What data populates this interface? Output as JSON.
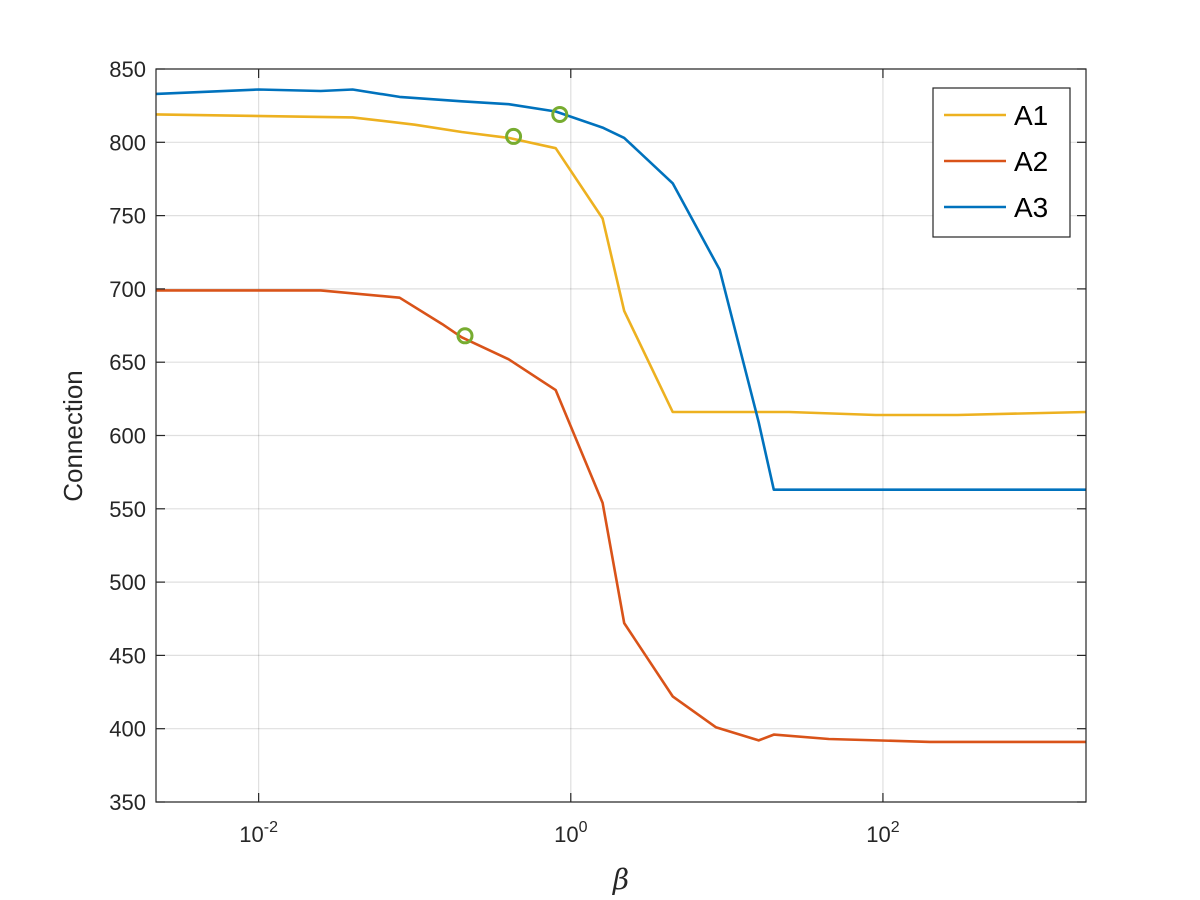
{
  "chart_data": {
    "type": "line",
    "title": "",
    "xlabel": "β",
    "ylabel": "Connection",
    "xscale": "log",
    "xlim": [
      0.0022,
      2000
    ],
    "ylim": [
      350,
      850
    ],
    "x_ticks": [
      {
        "value": 0.01,
        "base": "10",
        "exp": "-2"
      },
      {
        "value": 1,
        "base": "10",
        "exp": "0"
      },
      {
        "value": 100,
        "base": "10",
        "exp": "2"
      }
    ],
    "y_ticks": [
      {
        "value": 350,
        "label": "350"
      },
      {
        "value": 400,
        "label": "400"
      },
      {
        "value": 450,
        "label": "450"
      },
      {
        "value": 500,
        "label": "500"
      },
      {
        "value": 550,
        "label": "550"
      },
      {
        "value": 600,
        "label": "600"
      },
      {
        "value": 650,
        "label": "650"
      },
      {
        "value": 700,
        "label": "700"
      },
      {
        "value": 750,
        "label": "750"
      },
      {
        "value": 800,
        "label": "800"
      },
      {
        "value": 850,
        "label": "850"
      }
    ],
    "grid": true,
    "legend_position": "top-right",
    "series": [
      {
        "name": "A1",
        "color": "#EDB120",
        "x": [
          0.0022,
          0.04,
          0.1,
          0.2,
          0.4,
          0.8,
          1.6,
          2.2,
          4.5,
          25,
          90,
          300,
          2000
        ],
        "y": [
          819,
          817,
          812,
          807,
          803,
          796,
          748,
          685,
          616,
          616,
          614,
          614,
          616
        ],
        "marker": {
          "x": 0.43,
          "y": 804
        }
      },
      {
        "name": "A2",
        "color": "#D95319",
        "x": [
          0.0022,
          0.01,
          0.025,
          0.08,
          0.15,
          0.2,
          0.4,
          0.8,
          1.6,
          2.2,
          4.5,
          8.5,
          16,
          20,
          45,
          200,
          2000
        ],
        "y": [
          699,
          699,
          699,
          694,
          676,
          667,
          652,
          631,
          554,
          472,
          422,
          401,
          392,
          396,
          393,
          391,
          391
        ],
        "marker": {
          "x": 0.21,
          "y": 668
        }
      },
      {
        "name": "A3",
        "color": "#0072BD",
        "x": [
          0.0022,
          0.01,
          0.025,
          0.04,
          0.08,
          0.2,
          0.4,
          0.8,
          1.6,
          2.2,
          4.5,
          9,
          16,
          20,
          60,
          2000
        ],
        "y": [
          833,
          836,
          835,
          836,
          831,
          828,
          826,
          821,
          810,
          803,
          772,
          713,
          609,
          563,
          563,
          563
        ],
        "marker": {
          "x": 0.85,
          "y": 819
        }
      }
    ],
    "marker_color": "#77AC30"
  }
}
